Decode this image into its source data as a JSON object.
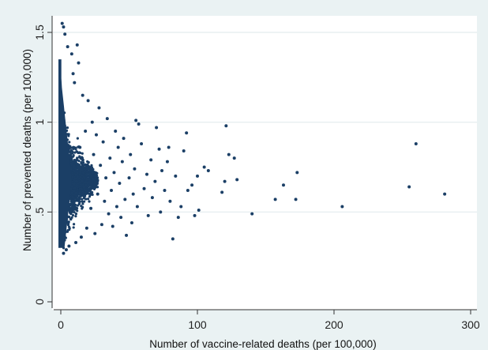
{
  "chart_data": {
    "type": "scatter",
    "title": "",
    "xlabel": "Number of vaccine-related deaths (per 100,000)",
    "ylabel": "Number of prevented deaths (per 100,000)",
    "xlim": [
      0,
      300
    ],
    "ylim": [
      0,
      1.55
    ],
    "x_ticks": [
      {
        "value": 0,
        "label": "0"
      },
      {
        "value": 100,
        "label": "100"
      },
      {
        "value": 200,
        "label": "200"
      },
      {
        "value": 300,
        "label": "300"
      }
    ],
    "y_ticks": [
      {
        "value": 0,
        "label": "0"
      },
      {
        "value": 0.5,
        "label": ".5"
      },
      {
        "value": 1,
        "label": "1"
      },
      {
        "value": 1.5,
        "label": "1.5"
      }
    ],
    "grid": "horizontal",
    "colors": {
      "background": "#eaf2f3",
      "plot_area": "#ffffff",
      "marker": "#1b3f66",
      "gridline": "#e3ecee"
    },
    "dense_cluster": {
      "note_x_range": [
        0,
        12
      ],
      "approx_y_range": [
        0.27,
        1.4
      ]
    },
    "points": [
      {
        "x": 260,
        "y": 0.88
      },
      {
        "x": 281,
        "y": 0.6
      },
      {
        "x": 255,
        "y": 0.64
      },
      {
        "x": 206,
        "y": 0.53
      },
      {
        "x": 173,
        "y": 0.72
      },
      {
        "x": 172,
        "y": 0.57
      },
      {
        "x": 163,
        "y": 0.65
      },
      {
        "x": 157,
        "y": 0.57
      },
      {
        "x": 140,
        "y": 0.49
      },
      {
        "x": 127,
        "y": 0.8
      },
      {
        "x": 129,
        "y": 0.68
      },
      {
        "x": 123,
        "y": 0.82
      },
      {
        "x": 121,
        "y": 0.98
      },
      {
        "x": 120,
        "y": 0.67
      },
      {
        "x": 118,
        "y": 0.61
      },
      {
        "x": 108,
        "y": 0.73
      },
      {
        "x": 105,
        "y": 0.75
      },
      {
        "x": 100,
        "y": 0.7
      },
      {
        "x": 101,
        "y": 0.51
      },
      {
        "x": 98,
        "y": 0.48
      },
      {
        "x": 96,
        "y": 0.65
      },
      {
        "x": 93,
        "y": 0.62
      },
      {
        "x": 92,
        "y": 0.94
      },
      {
        "x": 90,
        "y": 0.84
      },
      {
        "x": 88,
        "y": 0.53
      },
      {
        "x": 86,
        "y": 0.47
      },
      {
        "x": 84,
        "y": 0.7
      },
      {
        "x": 82,
        "y": 0.35
      },
      {
        "x": 80,
        "y": 0.56
      },
      {
        "x": 79,
        "y": 0.86
      },
      {
        "x": 78,
        "y": 0.78
      },
      {
        "x": 76,
        "y": 0.62
      },
      {
        "x": 74,
        "y": 0.73
      },
      {
        "x": 73,
        "y": 0.5
      },
      {
        "x": 72,
        "y": 0.85
      },
      {
        "x": 70,
        "y": 0.97
      },
      {
        "x": 69,
        "y": 0.67
      },
      {
        "x": 67,
        "y": 0.58
      },
      {
        "x": 66,
        "y": 0.79
      },
      {
        "x": 64,
        "y": 0.48
      },
      {
        "x": 63,
        "y": 0.71
      },
      {
        "x": 61,
        "y": 0.63
      },
      {
        "x": 59,
        "y": 0.88
      },
      {
        "x": 57,
        "y": 0.99
      },
      {
        "x": 56,
        "y": 0.53
      },
      {
        "x": 55,
        "y": 1.01
      },
      {
        "x": 54,
        "y": 0.74
      },
      {
        "x": 53,
        "y": 0.6
      },
      {
        "x": 52,
        "y": 0.44
      },
      {
        "x": 51,
        "y": 0.82
      },
      {
        "x": 50,
        "y": 0.69
      },
      {
        "x": 48,
        "y": 0.37
      },
      {
        "x": 47,
        "y": 0.57
      },
      {
        "x": 46,
        "y": 0.91
      },
      {
        "x": 45,
        "y": 0.78
      },
      {
        "x": 44,
        "y": 0.47
      },
      {
        "x": 43,
        "y": 0.66
      },
      {
        "x": 42,
        "y": 0.86
      },
      {
        "x": 41,
        "y": 0.53
      },
      {
        "x": 40,
        "y": 0.95
      },
      {
        "x": 39,
        "y": 0.72
      },
      {
        "x": 38,
        "y": 0.42
      },
      {
        "x": 37,
        "y": 0.62
      },
      {
        "x": 36,
        "y": 0.8
      },
      {
        "x": 35,
        "y": 0.49
      },
      {
        "x": 34,
        "y": 1.02
      },
      {
        "x": 33,
        "y": 0.69
      },
      {
        "x": 32,
        "y": 0.56
      },
      {
        "x": 31,
        "y": 0.89
      },
      {
        "x": 30,
        "y": 0.43
      },
      {
        "x": 29,
        "y": 0.76
      },
      {
        "x": 28,
        "y": 1.08
      },
      {
        "x": 27,
        "y": 0.6
      },
      {
        "x": 26,
        "y": 0.93
      },
      {
        "x": 25,
        "y": 0.38
      },
      {
        "x": 24,
        "y": 0.82
      },
      {
        "x": 23,
        "y": 1.0
      },
      {
        "x": 22,
        "y": 0.52
      },
      {
        "x": 21,
        "y": 0.71
      },
      {
        "x": 20,
        "y": 1.12
      },
      {
        "x": 19,
        "y": 0.41
      },
      {
        "x": 18,
        "y": 0.95
      },
      {
        "x": 17,
        "y": 0.64
      },
      {
        "x": 16,
        "y": 1.15
      },
      {
        "x": 15,
        "y": 0.36
      },
      {
        "x": 14,
        "y": 0.86
      },
      {
        "x": 13,
        "y": 1.33
      },
      {
        "x": 12,
        "y": 1.43
      },
      {
        "x": 11,
        "y": 0.33
      },
      {
        "x": 10,
        "y": 1.22
      },
      {
        "x": 9,
        "y": 1.27
      },
      {
        "x": 8,
        "y": 1.38
      },
      {
        "x": 5,
        "y": 1.42
      },
      {
        "x": 3,
        "y": 1.49
      },
      {
        "x": 2,
        "y": 1.53
      },
      {
        "x": 1,
        "y": 1.55
      },
      {
        "x": 4,
        "y": 0.29
      },
      {
        "x": 2,
        "y": 0.27
      },
      {
        "x": 6,
        "y": 0.31
      }
    ]
  }
}
